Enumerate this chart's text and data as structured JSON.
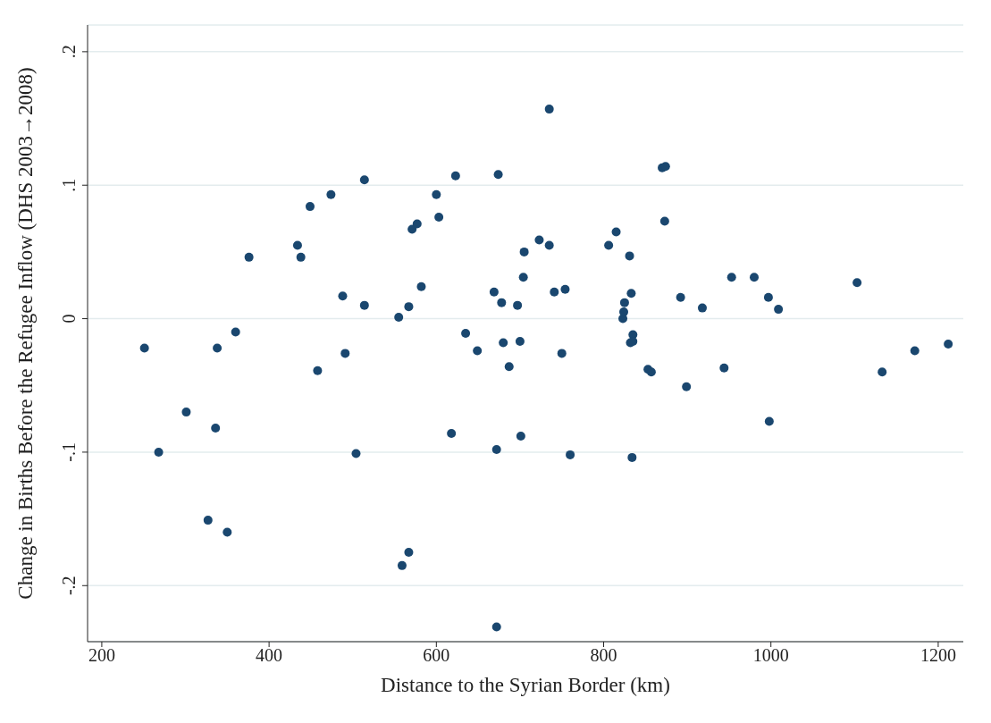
{
  "chart_data": {
    "type": "scatter",
    "xlabel": "Distance to the Syrian Border (km)",
    "ylabel": "Change in Births Before the Refugee Inflow (DHS 2003→2008)",
    "xlim": [
      183,
      1230
    ],
    "xticks": [
      200,
      400,
      600,
      800,
      1000,
      1200
    ],
    "ylim": [
      -0.242,
      0.22
    ],
    "yticks": [
      {
        "value": -0.2,
        "label": "-.2"
      },
      {
        "value": -0.1,
        "label": "-.1"
      },
      {
        "value": 0,
        "label": "0"
      },
      {
        "value": 0.1,
        "label": ".1"
      },
      {
        "value": 0.2,
        "label": ".2"
      }
    ],
    "grid": "y",
    "marker": "circle",
    "series": [
      {
        "color": "#1a476f",
        "x": [
          251,
          268,
          301,
          336,
          338,
          327,
          350,
          360,
          376,
          434,
          438,
          449,
          458,
          474,
          488,
          491,
          504,
          514,
          514,
          555,
          559,
          567,
          567,
          571,
          577,
          582,
          600,
          603,
          618,
          623,
          635,
          649,
          669,
          672,
          672,
          674,
          678,
          680,
          687,
          697,
          700,
          701,
          704,
          705,
          735,
          723,
          735,
          741,
          750,
          754,
          760,
          806,
          815,
          823,
          824,
          825,
          831,
          833,
          832,
          835,
          835,
          834,
          853,
          857,
          870,
          874,
          873,
          892,
          899,
          918,
          944,
          953,
          980,
          997,
          998,
          1009,
          1103,
          1133,
          1172,
          1212
        ],
        "values": [
          -0.022,
          -0.1,
          -0.07,
          -0.082,
          -0.022,
          -0.151,
          -0.16,
          -0.01,
          0.046,
          0.055,
          0.046,
          0.084,
          -0.039,
          0.093,
          0.017,
          -0.026,
          -0.101,
          0.104,
          0.01,
          0.001,
          -0.185,
          0.009,
          -0.175,
          0.067,
          0.071,
          0.024,
          0.093,
          0.076,
          -0.086,
          0.107,
          -0.011,
          -0.024,
          0.02,
          -0.098,
          -0.231,
          0.108,
          0.012,
          -0.018,
          -0.036,
          0.01,
          -0.017,
          -0.088,
          0.031,
          0.05,
          0.157,
          0.059,
          0.055,
          0.02,
          -0.026,
          0.022,
          -0.102,
          0.055,
          0.065,
          0,
          0.005,
          0.012,
          0.047,
          0.019,
          -0.018,
          -0.012,
          -0.017,
          -0.104,
          -0.038,
          -0.04,
          0.113,
          0.114,
          0.073,
          0.016,
          -0.051,
          0.008,
          -0.037,
          0.031,
          0.031,
          0.016,
          -0.077,
          0.007,
          0.027,
          -0.04,
          -0.024,
          -0.019
        ]
      }
    ]
  }
}
